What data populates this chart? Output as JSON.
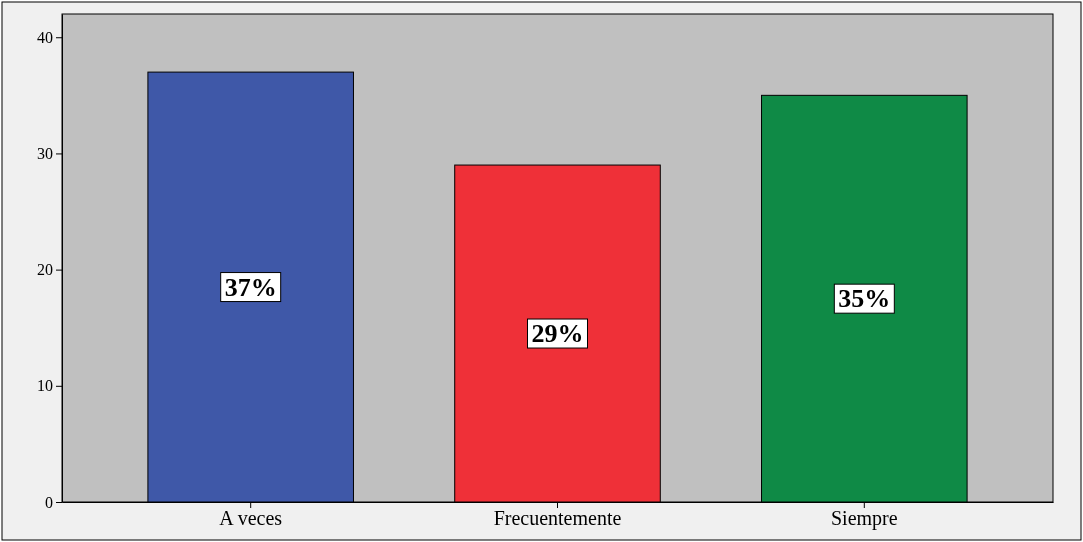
{
  "chart_data": {
    "type": "bar",
    "categories": [
      "A veces",
      "Frecuentemente",
      "Siempre"
    ],
    "values": [
      37,
      29,
      35
    ],
    "colors": [
      "#3f58a8",
      "#ef3038",
      "#0f8a46"
    ],
    "value_labels": [
      "37%",
      "29%",
      "35%"
    ],
    "ylim": [
      0,
      42
    ],
    "yticks": [
      0,
      10,
      20,
      30,
      40
    ]
  }
}
